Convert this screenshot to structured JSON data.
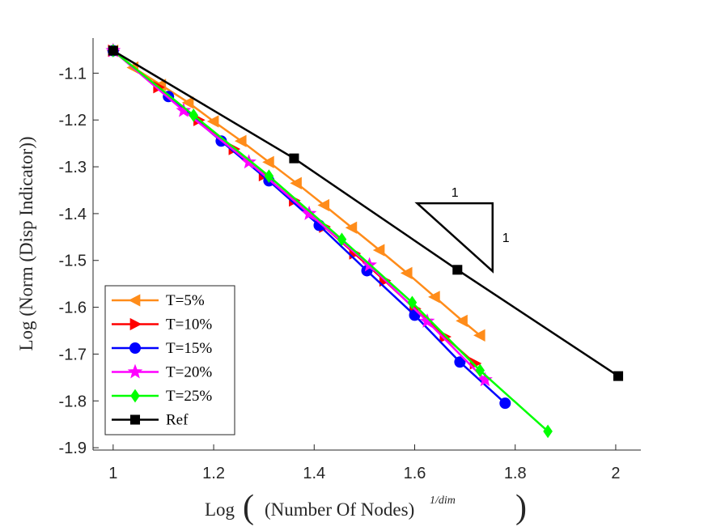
{
  "chart_data": {
    "type": "line",
    "title": "",
    "xlabel": {
      "main": "Log",
      "inner": "(Number Of Nodes)",
      "sup": "1/dim"
    },
    "ylabel": "Log (Norm (Disp Indicator))",
    "xlim": [
      0.96,
      2.05
    ],
    "ylim": [
      -1.905,
      -1.025
    ],
    "xticks": [
      1,
      1.2,
      1.4,
      1.6,
      1.8,
      2
    ],
    "xtick_labels": [
      "1",
      "1.2",
      "1.4",
      "1.6",
      "1.8",
      "2"
    ],
    "yticks": [
      -1.1,
      -1.2,
      -1.3,
      -1.4,
      -1.5,
      -1.6,
      -1.7,
      -1.8,
      -1.9
    ],
    "ytick_labels": [
      "-1.1",
      "-1.2",
      "-1.3",
      "-1.4",
      "-1.5",
      "-1.6",
      "-1.7",
      "-1.8",
      "-1.9"
    ],
    "grid": false,
    "legend_position": "bottom-left",
    "series": [
      {
        "name": "T=5%",
        "color": "#ff8c1a",
        "marker": "triangle-left",
        "x": [
          1.0,
          1.04,
          1.095,
          1.15,
          1.2,
          1.255,
          1.31,
          1.365,
          1.42,
          1.475,
          1.53,
          1.585,
          1.64,
          1.695,
          1.73
        ],
        "y": [
          -1.052,
          -1.088,
          -1.125,
          -1.163,
          -1.203,
          -1.245,
          -1.29,
          -1.335,
          -1.382,
          -1.43,
          -1.478,
          -1.527,
          -1.578,
          -1.629,
          -1.66
        ]
      },
      {
        "name": "T=10%",
        "color": "#ff0000",
        "marker": "triangle-right",
        "x": [
          1.0,
          1.09,
          1.17,
          1.24,
          1.3,
          1.36,
          1.42,
          1.48,
          1.54,
          1.6,
          1.66,
          1.72
        ],
        "y": [
          -1.052,
          -1.13,
          -1.2,
          -1.262,
          -1.318,
          -1.372,
          -1.428,
          -1.485,
          -1.543,
          -1.603,
          -1.663,
          -1.72
        ]
      },
      {
        "name": "T=15%",
        "color": "#0000ff",
        "marker": "circle",
        "x": [
          1.0,
          1.11,
          1.215,
          1.31,
          1.41,
          1.505,
          1.6,
          1.69,
          1.78
        ],
        "y": [
          -1.052,
          -1.15,
          -1.245,
          -1.33,
          -1.425,
          -1.522,
          -1.617,
          -1.717,
          -1.805
        ]
      },
      {
        "name": "T=20%",
        "color": "#ff00ff",
        "marker": "star",
        "x": [
          1.0,
          1.14,
          1.27,
          1.39,
          1.51,
          1.625,
          1.74
        ],
        "y": [
          -1.052,
          -1.18,
          -1.29,
          -1.4,
          -1.51,
          -1.63,
          -1.755
        ]
      },
      {
        "name": "T=25%",
        "color": "#00ff00",
        "marker": "diamond",
        "x": [
          1.0,
          1.16,
          1.31,
          1.455,
          1.595,
          1.73,
          1.865
        ],
        "y": [
          -1.052,
          -1.19,
          -1.32,
          -1.455,
          -1.59,
          -1.735,
          -1.865
        ]
      },
      {
        "name": "Ref",
        "color": "#000000",
        "marker": "square",
        "x": [
          1.0,
          1.36,
          1.685,
          2.005
        ],
        "y": [
          -1.052,
          -1.282,
          -1.52,
          -1.747
        ]
      }
    ],
    "annotation_triangle": {
      "vertices": [
        [
          1.605,
          -1.378
        ],
        [
          1.755,
          -1.378
        ],
        [
          1.755,
          -1.523
        ]
      ],
      "top_label": "1",
      "side_label": "1"
    }
  }
}
